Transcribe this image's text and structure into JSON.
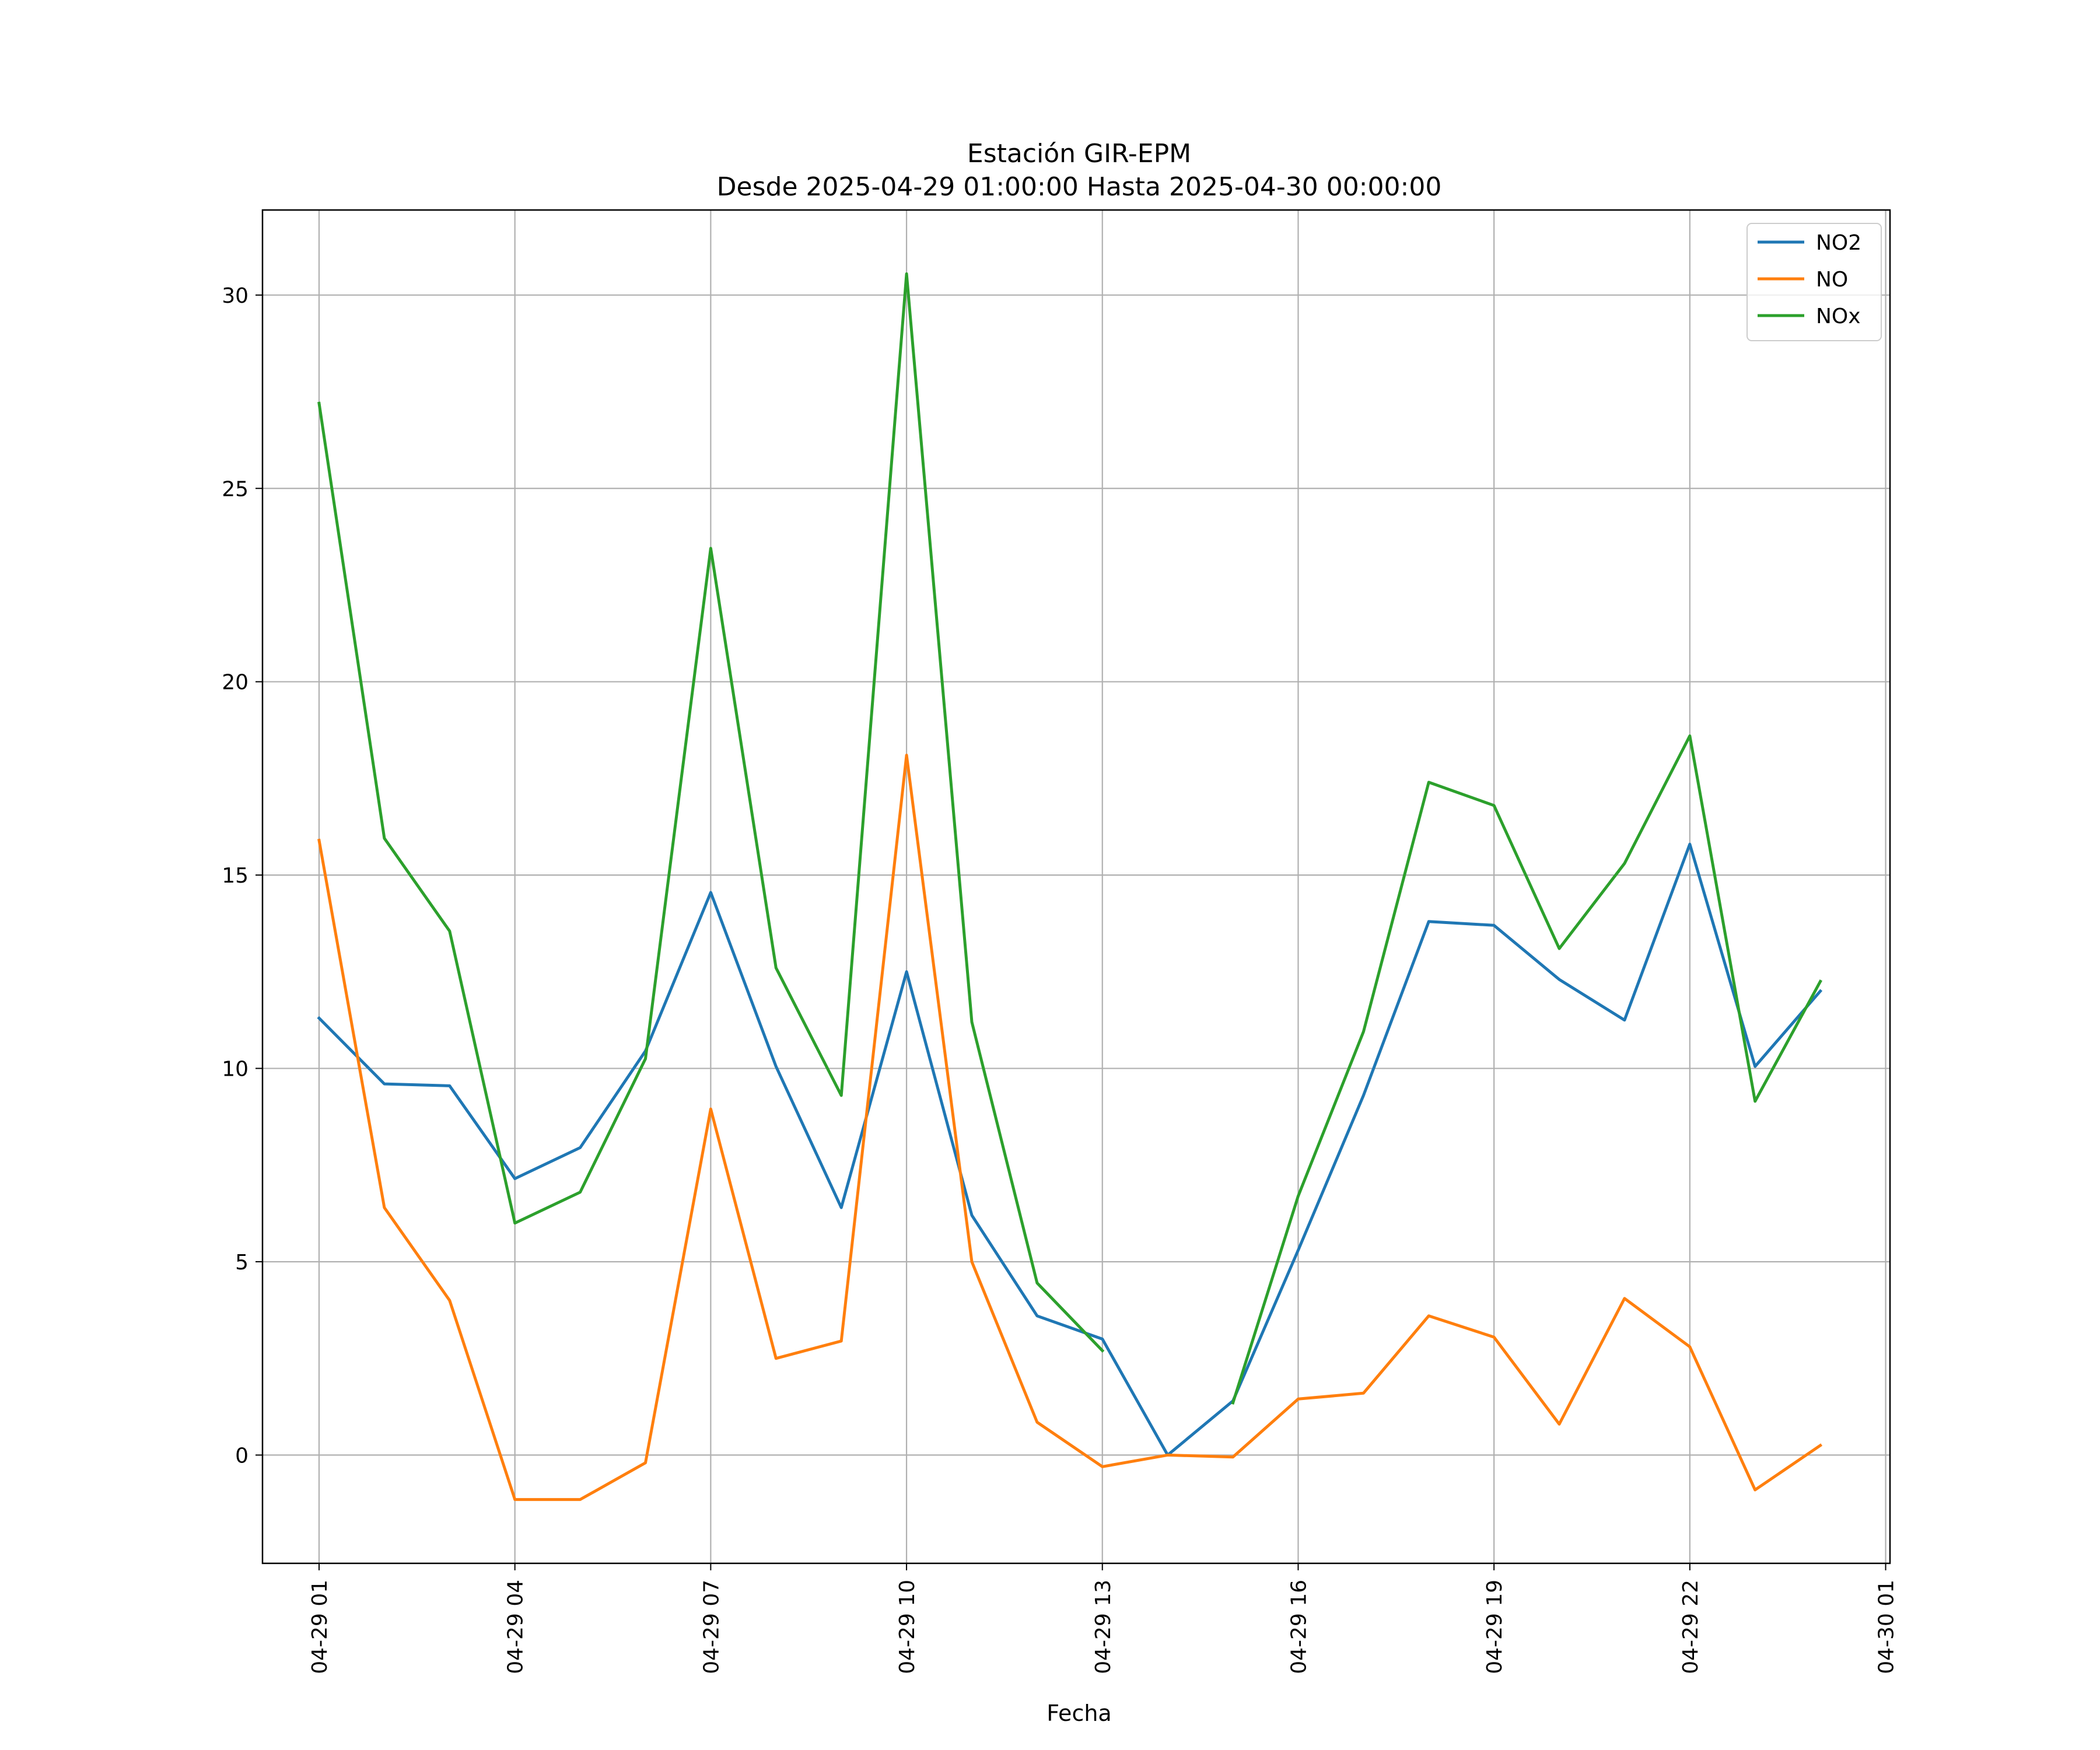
{
  "chart_data": {
    "type": "line",
    "title": "Estación GIR-EPM",
    "subtitle": "Desde 2025-04-29 01:00:00 Hasta 2025-04-30 00:00:00",
    "xlabel": "Fecha",
    "ylabel": "",
    "ylim": [
      -2.8,
      32.2
    ],
    "xlim": [
      "2025-04-29 00:08",
      "2025-04-30 01:04"
    ],
    "grid": true,
    "legend_position": "top-right",
    "y_ticks": [
      0,
      5,
      10,
      15,
      20,
      25,
      30
    ],
    "x_ticks": [
      "04-29 01",
      "04-29 04",
      "04-29 07",
      "04-29 10",
      "04-29 13",
      "04-29 16",
      "04-29 19",
      "04-29 22",
      "04-30 01"
    ],
    "x": [
      "04-29 01",
      "04-29 02",
      "04-29 03",
      "04-29 04",
      "04-29 05",
      "04-29 06",
      "04-29 07",
      "04-29 08",
      "04-29 09",
      "04-29 10",
      "04-29 11",
      "04-29 12",
      "04-29 13",
      "04-29 14",
      "04-29 15",
      "04-29 16",
      "04-29 17",
      "04-29 18",
      "04-29 19",
      "04-29 20",
      "04-29 21",
      "04-29 22",
      "04-29 23",
      "04-30 00"
    ],
    "series": [
      {
        "name": "NO2",
        "color": "#1f77b4",
        "values": [
          11.3,
          9.6,
          9.55,
          7.15,
          7.95,
          10.45,
          14.55,
          10.05,
          6.4,
          12.5,
          6.2,
          3.6,
          3.0,
          0.0,
          1.4,
          5.3,
          9.3,
          13.8,
          13.7,
          12.3,
          11.25,
          15.8,
          10.05,
          12.0
        ]
      },
      {
        "name": "NO",
        "color": "#ff7f0e",
        "values": [
          15.9,
          6.4,
          4.0,
          -1.15,
          -1.15,
          -0.2,
          8.95,
          2.5,
          2.95,
          18.1,
          5.0,
          0.85,
          -0.3,
          0.0,
          -0.05,
          1.45,
          1.6,
          3.6,
          3.05,
          0.8,
          4.05,
          2.8,
          -0.9,
          0.25
        ]
      },
      {
        "name": "NOx",
        "color": "#2ca02c",
        "values": [
          27.2,
          15.95,
          13.55,
          6.0,
          6.8,
          10.25,
          23.45,
          12.6,
          9.3,
          30.55,
          11.2,
          4.45,
          2.7,
          null,
          1.35,
          6.7,
          10.95,
          17.4,
          16.8,
          13.1,
          15.3,
          18.6,
          9.15,
          12.25
        ]
      }
    ]
  }
}
